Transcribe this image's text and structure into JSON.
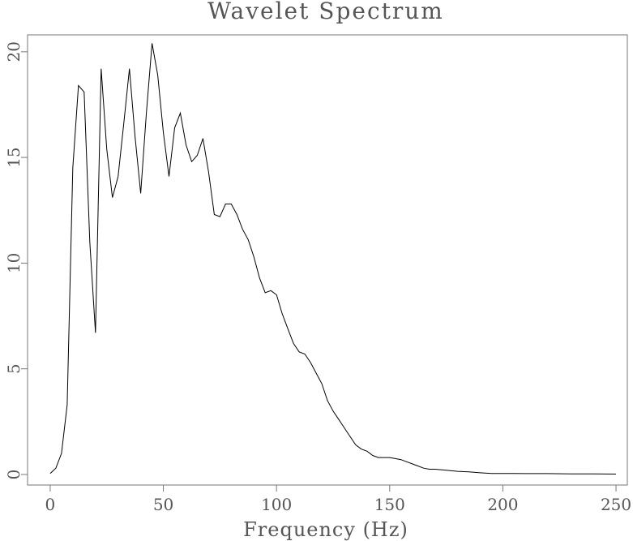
{
  "chart_data": {
    "type": "line",
    "title": "Wavelet Spectrum",
    "xlabel": "Frequency (Hz)",
    "ylabel": "",
    "xlim": [
      -10,
      255
    ],
    "ylim": [
      -0.5,
      20.8
    ],
    "xticks": [
      0,
      50,
      100,
      150,
      200,
      250
    ],
    "yticks": [
      0,
      5,
      10,
      15,
      20
    ],
    "grid": false,
    "series": [
      {
        "x": [
          0,
          2.5,
          5,
          7.5,
          10,
          12.5,
          15,
          17.5,
          20,
          22.5,
          25,
          27.5,
          30,
          32.5,
          35,
          37.5,
          40,
          42.5,
          45,
          47.5,
          50,
          52.5,
          55,
          57.5,
          60,
          62.5,
          65,
          67.5,
          70,
          72.5,
          75,
          77.5,
          80,
          82.5,
          85,
          87.5,
          90,
          92.5,
          95,
          97.5,
          100,
          102.5,
          105,
          107.5,
          110,
          112.5,
          115,
          117.5,
          120,
          122.5,
          125,
          127.5,
          130,
          132.5,
          135,
          137.5,
          140,
          142.5,
          145,
          147.5,
          150,
          152.5,
          155,
          157.5,
          160,
          162.5,
          165,
          167.5,
          170,
          175,
          180,
          185,
          190,
          195,
          200,
          210,
          220,
          230,
          240,
          250
        ],
        "values": [
          0.05,
          0.3,
          1.0,
          3.3,
          14.5,
          18.4,
          18.1,
          11.0,
          6.7,
          19.2,
          15.4,
          13.1,
          14.1,
          16.6,
          19.2,
          16.0,
          13.3,
          17.1,
          20.4,
          18.9,
          16.2,
          14.1,
          16.4,
          17.1,
          15.6,
          14.8,
          15.1,
          15.9,
          14.3,
          12.3,
          12.2,
          12.8,
          12.8,
          12.3,
          11.6,
          11.1,
          10.3,
          9.3,
          8.6,
          8.7,
          8.5,
          7.6,
          6.9,
          6.2,
          5.8,
          5.7,
          5.3,
          4.8,
          4.3,
          3.5,
          3.0,
          2.6,
          2.2,
          1.8,
          1.4,
          1.2,
          1.1,
          0.9,
          0.8,
          0.8,
          0.8,
          0.75,
          0.7,
          0.6,
          0.5,
          0.4,
          0.3,
          0.25,
          0.25,
          0.2,
          0.15,
          0.12,
          0.08,
          0.05,
          0.05,
          0.04,
          0.04,
          0.03,
          0.03,
          0.02
        ]
      }
    ]
  }
}
